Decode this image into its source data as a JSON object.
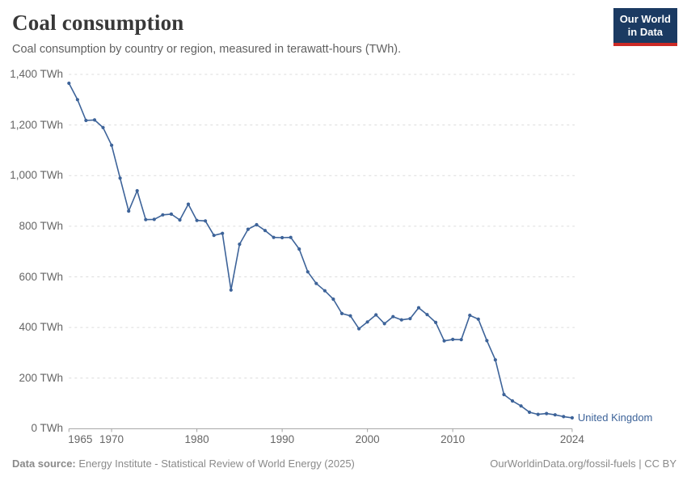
{
  "header": {
    "title": "Coal consumption",
    "subtitle": "Coal consumption by country or region, measured in terawatt-hours (TWh)."
  },
  "logo": {
    "line1": "Our World",
    "line2": "in Data",
    "bg_color": "#1b3a62",
    "bar_color": "#cc2a26"
  },
  "chart": {
    "end_label": "United Kingdom",
    "line_color": "#3d6399",
    "grid_color": "#dcdcdc",
    "axis_color": "#a3a3a3",
    "tick_label_color": "#666666"
  },
  "chart_data": {
    "type": "line",
    "title": "Coal consumption",
    "subtitle": "Coal consumption by country or region, measured in terawatt-hours (TWh).",
    "unit": "TWh",
    "xlabel": "",
    "ylabel": "TWh",
    "ylim": [
      0,
      1400
    ],
    "xlim": [
      1965,
      2024
    ],
    "grid": "horizontal dashed",
    "legend_position": "end-of-line label",
    "series": [
      {
        "name": "United Kingdom",
        "x": [
          1965,
          1966,
          1967,
          1968,
          1969,
          1970,
          1971,
          1972,
          1973,
          1974,
          1975,
          1976,
          1977,
          1978,
          1979,
          1980,
          1981,
          1982,
          1983,
          1984,
          1985,
          1986,
          1987,
          1988,
          1989,
          1990,
          1991,
          1992,
          1993,
          1994,
          1995,
          1996,
          1997,
          1998,
          1999,
          2000,
          2001,
          2002,
          2003,
          2004,
          2005,
          2006,
          2007,
          2008,
          2009,
          2010,
          2011,
          2012,
          2013,
          2014,
          2015,
          2016,
          2017,
          2018,
          2019,
          2020,
          2021,
          2022,
          2023,
          2024
        ],
        "values": [
          1365,
          1300,
          1218,
          1220,
          1190,
          1120,
          990,
          860,
          940,
          826,
          827,
          845,
          848,
          825,
          887,
          823,
          821,
          764,
          772,
          548,
          729,
          788,
          806,
          783,
          756,
          755,
          756,
          710,
          620,
          574,
          545,
          512,
          455,
          446,
          395,
          422,
          450,
          415,
          443,
          430,
          435,
          478,
          451,
          420,
          347,
          353,
          352,
          448,
          433,
          348,
          272,
          135,
          110,
          90,
          65,
          57,
          60,
          55,
          48,
          43
        ]
      }
    ],
    "yticks": [
      {
        "value": 0,
        "label": "0 TWh"
      },
      {
        "value": 200,
        "label": "200 TWh"
      },
      {
        "value": 400,
        "label": "400 TWh"
      },
      {
        "value": 600,
        "label": "600 TWh"
      },
      {
        "value": 800,
        "label": "800 TWh"
      },
      {
        "value": 1000,
        "label": "1,000 TWh"
      },
      {
        "value": 1200,
        "label": "1,200 TWh"
      },
      {
        "value": 1400,
        "label": "1,400 TWh"
      }
    ],
    "xticks": [
      {
        "value": 1965,
        "label": "1965"
      },
      {
        "value": 1970,
        "label": "1970"
      },
      {
        "value": 1980,
        "label": "1980"
      },
      {
        "value": 1990,
        "label": "1990"
      },
      {
        "value": 2000,
        "label": "2000"
      },
      {
        "value": 2010,
        "label": "2010"
      },
      {
        "value": 2024,
        "label": "2024"
      }
    ]
  },
  "footer": {
    "source_label": "Data source:",
    "source_text": " Energy Institute - Statistical Review of World Energy (2025)",
    "url": "OurWorldinData.org/fossil-fuels",
    "separator": " | ",
    "license": "CC BY"
  }
}
